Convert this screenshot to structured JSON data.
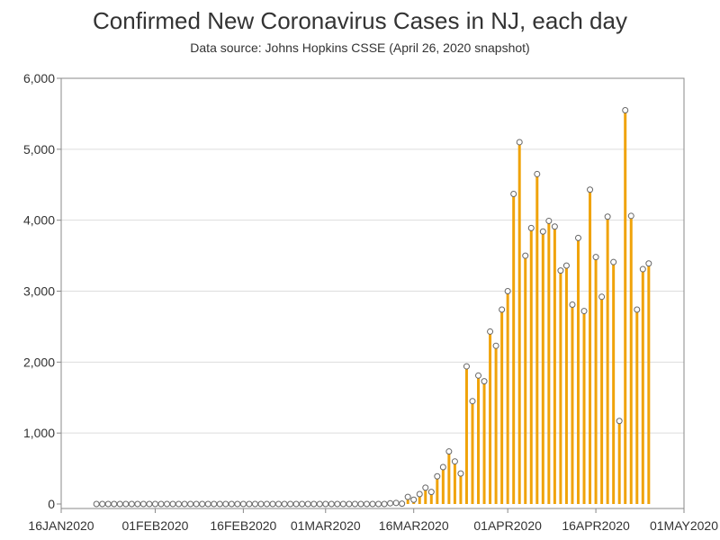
{
  "chart_data": {
    "type": "bar",
    "title": "Confirmed New Coronavirus Cases in NJ, each day",
    "subtitle": "Data source: Johns Hopkins CSSE (April 26, 2020 snapshot)",
    "xlabel": "",
    "ylabel": "",
    "x_start": "2020-01-22",
    "x_end": "2020-04-26",
    "x_domain": [
      "2020-01-16",
      "2020-05-01"
    ],
    "ylim": [
      0,
      6000
    ],
    "y_ticks": [
      {
        "value": 0,
        "label": "0"
      },
      {
        "value": 1000,
        "label": "1,000"
      },
      {
        "value": 2000,
        "label": "2,000"
      },
      {
        "value": 3000,
        "label": "3,000"
      },
      {
        "value": 4000,
        "label": "4,000"
      },
      {
        "value": 5000,
        "label": "5,000"
      },
      {
        "value": 6000,
        "label": "6,000"
      }
    ],
    "x_ticks": [
      {
        "date": "2020-01-16",
        "label": "16JAN2020"
      },
      {
        "date": "2020-02-01",
        "label": "01FEB2020"
      },
      {
        "date": "2020-02-16",
        "label": "16FEB2020"
      },
      {
        "date": "2020-03-01",
        "label": "01MAR2020"
      },
      {
        "date": "2020-03-16",
        "label": "16MAR2020"
      },
      {
        "date": "2020-04-01",
        "label": "01APR2020"
      },
      {
        "date": "2020-04-16",
        "label": "16APR2020"
      },
      {
        "date": "2020-05-01",
        "label": "01MAY2020"
      }
    ],
    "values": [
      0,
      0,
      0,
      0,
      0,
      0,
      0,
      0,
      0,
      0,
      0,
      0,
      0,
      0,
      0,
      0,
      0,
      0,
      0,
      0,
      0,
      0,
      0,
      0,
      0,
      0,
      0,
      0,
      0,
      0,
      0,
      0,
      0,
      0,
      0,
      0,
      0,
      0,
      0,
      0,
      0,
      0,
      0,
      0,
      0,
      0,
      0,
      0,
      0,
      0,
      10,
      15,
      5,
      100,
      60,
      140,
      230,
      170,
      390,
      520,
      740,
      600,
      430,
      1940,
      1450,
      1810,
      1730,
      2430,
      2230,
      2740,
      3000,
      4370,
      5100,
      3500,
      3890,
      4650,
      3840,
      3990,
      3910,
      3290,
      3360,
      2810,
      3750,
      2720,
      4430,
      3480,
      2920,
      4050,
      3410,
      1170,
      5550,
      4060,
      2740,
      3310,
      3390
    ],
    "grid": true,
    "colors": {
      "bar": "#f0a30a",
      "marker_fill": "#ffffff",
      "marker_stroke": "#666666",
      "grid": "#dddddd",
      "axis": "#888888",
      "text": "#333333"
    }
  }
}
